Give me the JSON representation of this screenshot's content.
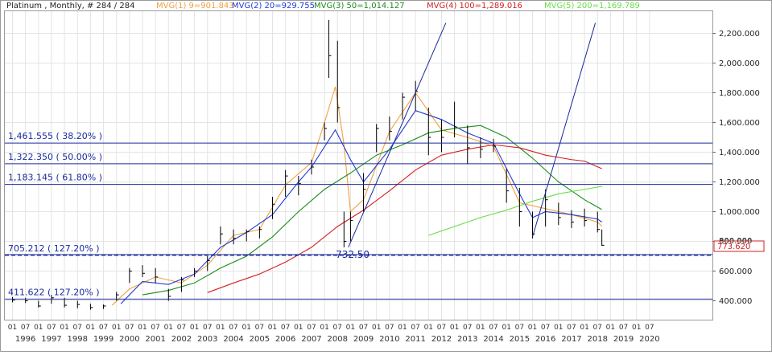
{
  "header": {
    "instrument": "Platinum , Monthly, # 284 / 284",
    "indicators": [
      {
        "label": "MVG(1) 9=901.843",
        "color": "#f0a040"
      },
      {
        "label": "MVG(2) 20=929.755",
        "color": "#1f3bd6"
      },
      {
        "label": "MVG(3) 50=1,014.127",
        "color": "#1a8c1a"
      },
      {
        "label": "MVG(4) 100=1,289.016",
        "color": "#d42020"
      },
      {
        "label": "MVG(5) 200=1,169.789",
        "color": "#66dd44"
      }
    ]
  },
  "chart_data": {
    "type": "line",
    "title": "Platinum , Monthly, # 284 / 284",
    "ylim": [
      300,
      2300
    ],
    "y_ticks": [
      400,
      600,
      800,
      1000,
      1200,
      1400,
      1600,
      1800,
      2000,
      2200
    ],
    "y_tick_labels": [
      "400.000",
      "600.000",
      "800.000",
      "1,000.000",
      "1,200.000",
      "1,400.000",
      "1,600.000",
      "1,800.000",
      "2,000.000",
      "2,200.000"
    ],
    "x_ticks": [
      "1996-01",
      "1996-07",
      "1997-01",
      "1997-07",
      "1998-01",
      "1998-07",
      "1999-01",
      "1999-07",
      "2000-01",
      "2000-07",
      "2001-01",
      "2001-07",
      "2002-01",
      "2002-07",
      "2003-01",
      "2003-07",
      "2004-01",
      "2004-07",
      "2005-01",
      "2005-07",
      "2006-01",
      "2006-07",
      "2007-01",
      "2007-07",
      "2008-01",
      "2008-07",
      "2009-01",
      "2009-07",
      "2010-01",
      "2010-07",
      "2011-01",
      "2011-07",
      "2012-01",
      "2012-07",
      "2013-01",
      "2013-07",
      "2014-01",
      "2014-07",
      "2015-01",
      "2015-07",
      "2016-01",
      "2016-07",
      "2017-01",
      "2017-07",
      "2018-01",
      "2018-07",
      "2019-01",
      "2019-07",
      "2020-01",
      "2020-07"
    ],
    "x_month_labels": [
      "01",
      "07",
      "01",
      "07",
      "01",
      "07",
      "01",
      "07",
      "01",
      "07",
      "01",
      "07",
      "01",
      "07",
      "01",
      "07",
      "01",
      "07",
      "01",
      "07",
      "01",
      "07",
      "01",
      "07",
      "01",
      "07",
      "01",
      "07",
      "01",
      "07",
      "01",
      "07",
      "01",
      "07",
      "01",
      "07",
      "01",
      "07",
      "01",
      "07",
      "01",
      "07",
      "01",
      "07",
      "01",
      "07",
      "01",
      "07",
      "01",
      "07"
    ],
    "x_year_labels": [
      "1996",
      "1997",
      "1998",
      "1999",
      "2000",
      "2001",
      "2002",
      "2003",
      "2004",
      "2005",
      "2006",
      "2007",
      "2008",
      "2009",
      "2010",
      "2011",
      "2012",
      "2013",
      "2014",
      "2015",
      "2016",
      "2017",
      "2018",
      "2019",
      "2020"
    ],
    "x_range": [
      "1996-01",
      "2020-12"
    ],
    "grid": true,
    "series": [
      {
        "name": "Platinum",
        "type": "hlc-bars",
        "color": "#000000",
        "x": [
          "1996-01",
          "1996-07",
          "1997-01",
          "1997-07",
          "1998-01",
          "1998-07",
          "1999-01",
          "1999-07",
          "2000-01",
          "2000-07",
          "2001-01",
          "2001-07",
          "2002-01",
          "2002-07",
          "2003-01",
          "2003-07",
          "2004-01",
          "2004-07",
          "2005-01",
          "2005-07",
          "2006-01",
          "2006-07",
          "2007-01",
          "2007-07",
          "2008-01",
          "2008-03",
          "2008-07",
          "2008-10",
          "2009-01",
          "2009-07",
          "2010-01",
          "2010-07",
          "2011-01",
          "2011-07",
          "2012-01",
          "2012-07",
          "2013-01",
          "2013-07",
          "2014-01",
          "2014-07",
          "2015-01",
          "2015-07",
          "2016-01",
          "2016-07",
          "2017-01",
          "2017-07",
          "2018-01",
          "2018-07",
          "2018-09"
        ],
        "high": [
          425,
          420,
          400,
          440,
          420,
          400,
          380,
          375,
          460,
          620,
          640,
          620,
          480,
          560,
          620,
          700,
          900,
          880,
          880,
          900,
          1100,
          1280,
          1240,
          1350,
          1600,
          2290,
          2150,
          1000,
          1000,
          1260,
          1590,
          1640,
          1800,
          1880,
          1700,
          1620,
          1740,
          1580,
          1500,
          1490,
          1290,
          1160,
          1000,
          1150,
          1060,
          1010,
          1020,
          1000,
          880
        ],
        "low": [
          390,
          385,
          355,
          380,
          355,
          350,
          340,
          345,
          400,
          520,
          560,
          520,
          400,
          460,
          560,
          600,
          780,
          780,
          800,
          820,
          950,
          1100,
          1110,
          1250,
          1480,
          1900,
          1600,
          760,
          800,
          1000,
          1400,
          1480,
          1620,
          1680,
          1380,
          1400,
          1500,
          1320,
          1360,
          1400,
          1060,
          900,
          820,
          900,
          910,
          890,
          900,
          860,
          770
        ],
        "close": [
          405,
          400,
          365,
          420,
          370,
          375,
          355,
          365,
          440,
          600,
          585,
          560,
          430,
          540,
          600,
          670,
          850,
          820,
          865,
          880,
          1050,
          1240,
          1190,
          1300,
          1560,
          2050,
          1700,
          800,
          940,
          1150,
          1560,
          1540,
          1770,
          1810,
          1500,
          1500,
          1570,
          1430,
          1420,
          1440,
          1140,
          1000,
          850,
          1080,
          960,
          930,
          940,
          880,
          773.62
        ]
      },
      {
        "name": "MVG(1) 9",
        "color": "#f0a040",
        "x": [
          "1999-11",
          "2000-07",
          "2001-07",
          "2002-07",
          "2003-07",
          "2004-07",
          "2005-07",
          "2006-07",
          "2007-07",
          "2008-01",
          "2008-06",
          "2008-10",
          "2009-01",
          "2009-07",
          "2010-07",
          "2011-07",
          "2012-07",
          "2013-07",
          "2014-07",
          "2015-07",
          "2016-07",
          "2017-07",
          "2018-07",
          "2018-09"
        ],
        "values": [
          370,
          480,
          560,
          520,
          640,
          840,
          880,
          1180,
          1330,
          1600,
          1840,
          1450,
          1000,
          1080,
          1540,
          1800,
          1550,
          1500,
          1440,
          1060,
          1020,
          980,
          930,
          901.843
        ]
      },
      {
        "name": "MVG(2) 20",
        "color": "#1f3bd6",
        "x": [
          "2000-03",
          "2001-01",
          "2002-01",
          "2003-01",
          "2004-01",
          "2005-01",
          "2006-01",
          "2007-01",
          "2007-07",
          "2008-06",
          "2009-01",
          "2009-07",
          "2010-07",
          "2011-07",
          "2012-07",
          "2013-07",
          "2014-07",
          "2015-07",
          "2016-01",
          "2016-07",
          "2017-07",
          "2018-07",
          "2018-09"
        ],
        "values": [
          380,
          530,
          510,
          580,
          760,
          860,
          980,
          1200,
          1300,
          1550,
          1350,
          1200,
          1420,
          1680,
          1620,
          1530,
          1460,
          1120,
          960,
          1000,
          980,
          950,
          929.755
        ]
      },
      {
        "name": "MVG(3) 50",
        "color": "#1a8c1a",
        "x": [
          "2001-01",
          "2002-01",
          "2003-01",
          "2004-01",
          "2005-01",
          "2006-01",
          "2007-01",
          "2008-01",
          "2009-01",
          "2010-01",
          "2011-01",
          "2012-01",
          "2013-01",
          "2014-01",
          "2015-01",
          "2016-01",
          "2017-01",
          "2018-01",
          "2018-09"
        ],
        "values": [
          440,
          470,
          520,
          620,
          700,
          830,
          1000,
          1150,
          1260,
          1380,
          1450,
          1530,
          1560,
          1580,
          1500,
          1360,
          1200,
          1080,
          1014.127
        ]
      },
      {
        "name": "MVG(4) 100",
        "color": "#d42020",
        "x": [
          "2003-07",
          "2004-07",
          "2005-07",
          "2006-07",
          "2007-07",
          "2008-07",
          "2009-07",
          "2010-07",
          "2011-07",
          "2012-07",
          "2013-07",
          "2014-07",
          "2015-07",
          "2016-07",
          "2017-07",
          "2018-01",
          "2018-09"
        ],
        "values": [
          455,
          520,
          580,
          660,
          760,
          900,
          1010,
          1140,
          1280,
          1380,
          1420,
          1450,
          1430,
          1380,
          1350,
          1340,
          1289.016
        ]
      },
      {
        "name": "MVG(5) 200",
        "color": "#66dd44",
        "x": [
          "2012-01",
          "2013-01",
          "2014-01",
          "2015-01",
          "2016-01",
          "2017-01",
          "2018-01",
          "2018-09"
        ],
        "values": [
          840,
          900,
          960,
          1010,
          1070,
          1120,
          1150,
          1169.789
        ]
      }
    ],
    "horizontal_levels": [
      {
        "value": 1461.555,
        "label": "1,461.555 ( 38.20% )",
        "style": "solid"
      },
      {
        "value": 1322.35,
        "label": "1,322.350 ( 50.00% )",
        "style": "solid"
      },
      {
        "value": 1183.145,
        "label": "1,183.145 ( 61.80% )",
        "style": "solid"
      },
      {
        "value": 705.212,
        "label": "705.212 ( 127.20% )",
        "style": "dashed"
      },
      {
        "value": 711,
        "label": "",
        "style": "solid"
      },
      {
        "value": 411.622,
        "label": "411.622 ( 127.20% )",
        "style": "solid"
      }
    ],
    "trend_lines": [
      {
        "from": {
          "x": "2008-12",
          "y": 760
        },
        "to": {
          "x": "2012-09",
          "y": 2270
        }
      },
      {
        "from": {
          "x": "2016-01",
          "y": 830
        },
        "to": {
          "x": "2018-06",
          "y": 2270
        }
      }
    ],
    "annotations": [
      {
        "text": "732.50",
        "x": "2009-02",
        "y": 690
      }
    ],
    "current_value": {
      "label": "773.620",
      "value": 773.62
    },
    "right_edge_readout": "800.000"
  }
}
